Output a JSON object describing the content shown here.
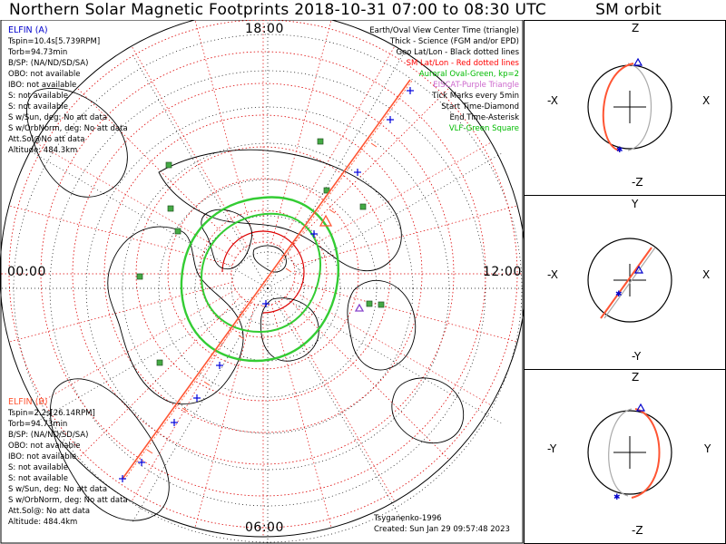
{
  "title": "Northern Solar Magnetic Footprints 2018-10-31 07:00 to 08:30 UTC",
  "orbit_title": "SM orbit",
  "hours": {
    "top": "18:00",
    "left": "00:00",
    "right": "12:00",
    "bottom": "06:00"
  },
  "elfin_a": {
    "name": "ELFIN (A)",
    "color": "#0000cc",
    "lines": [
      "Tspin=10.4s[5.739RPM]",
      "Torb=94.73min",
      "B/SP: (NA/ND/SD/SA)",
      "OBO: not available",
      "IBO: not available",
      "S: not available",
      "S: not available",
      "S w/Sun, deg: No att data",
      "S w/OrbNorm, deg: No att data",
      "Att.Sol@No att data",
      "Altitude: 484.3km"
    ]
  },
  "elfin_b": {
    "name": "ELFIN (B)",
    "color": "#ff5533",
    "lines": [
      "Tspin=2.2s[26.14RPM]",
      "Torb=94.73min",
      "B/SP: (NA/ND/SD/SA)",
      "OBO: not available",
      "IBO: not available",
      "S: not available",
      "S: not available",
      "S w/Sun, deg: No att data",
      "S w/OrbNorm, deg: No att data",
      "Att.Sol@: No att data",
      "Altitude: 484.4km"
    ]
  },
  "legend": [
    {
      "text": "Earth/Oval View Center Time (triangle)",
      "color": "#000000"
    },
    {
      "text": "Thick - Science (FGM and/or EPD)",
      "color": "#000000"
    },
    {
      "text": "Geo Lat/Lon - Black dotted lines",
      "color": "#000000"
    },
    {
      "text": "SM Lat/Lon - Red dotted lines",
      "color": "#ff0000"
    },
    {
      "text": "Auroral Oval-Green, kp=2",
      "color": "#00bb00"
    },
    {
      "text": "EISCAT-Purple Triangle",
      "color": "#cc66cc"
    },
    {
      "text": "Tick Marks every 5min",
      "color": "#000000"
    },
    {
      "text": "Start Time-Diamond",
      "color": "#000000"
    },
    {
      "text": "End Time-Asterisk",
      "color": "#000000"
    },
    {
      "text": "VLF-Green Square",
      "color": "#00bb00"
    }
  ],
  "footer": {
    "model": "Tsyganenko-1996",
    "created": "Created: Sun Jan 29 09:57:48 2023"
  },
  "panels": [
    {
      "top": "Z",
      "bottom": "-Z",
      "left": "-X",
      "right": "X"
    },
    {
      "top": "Y",
      "bottom": "-Y",
      "left": "-X",
      "right": "X"
    },
    {
      "top": "Z",
      "bottom": "-Z",
      "left": "-Y",
      "right": "Y"
    }
  ],
  "chart_data": {
    "type": "scatter",
    "projection": "north polar, magnetic local time",
    "sm_latitude_circles_deg": [
      50,
      60,
      70,
      80
    ],
    "mlt_hours_labeled": [
      "00:00",
      "06:00",
      "12:00",
      "18:00"
    ],
    "auroral_oval_kp": 2,
    "series": [
      {
        "name": "ELFIN (A)",
        "color": "#0000cc"
      },
      {
        "name": "ELFIN (B)",
        "color": "#ff5533"
      }
    ],
    "colors": {
      "sm_grid": "#dd0000",
      "geo_grid": "#000000",
      "auroral_oval": "#33cc33",
      "vlf_station": "#44aa44",
      "eiscat": "#8844cc",
      "track": "#ff5533",
      "ticks": "#0000dd"
    }
  }
}
